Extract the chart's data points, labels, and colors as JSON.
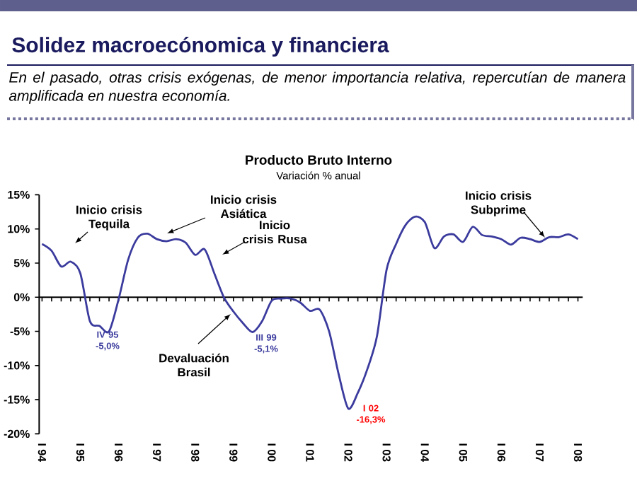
{
  "chart_data": {
    "type": "line",
    "title": "Producto Bruto Interno",
    "subtitle": "Variación % anual",
    "categories": [
      "I 94",
      null,
      null,
      null,
      "I 95",
      null,
      null,
      null,
      "I 96",
      null,
      null,
      null,
      "I 97",
      null,
      null,
      null,
      "I 98",
      null,
      null,
      null,
      "I 99",
      null,
      null,
      null,
      "I 00",
      null,
      null,
      null,
      "I 01",
      null,
      null,
      null,
      "I 02",
      null,
      null,
      null,
      "I 03",
      null,
      null,
      null,
      "I 04",
      null,
      null,
      null,
      "I 05",
      null,
      null,
      null,
      "I 06",
      null,
      null,
      null,
      "I 07",
      null,
      null,
      null,
      "I 08"
    ],
    "series": [
      {
        "color": "#3b3b9e",
        "values": [
          7.8,
          6.8,
          4.5,
          5.2,
          3.5,
          -3.5,
          -4.2,
          -5.0,
          -0.3,
          5.5,
          8.7,
          9.3,
          8.5,
          8.2,
          8.5,
          8.0,
          6.2,
          7.0,
          3.5,
          0.0,
          -2.1,
          -3.8,
          -5.1,
          -3.5,
          -0.5,
          -0.2,
          -0.2,
          -0.8,
          -2.0,
          -1.8,
          -5.0,
          -11.3,
          -16.3,
          -14.0,
          -10.5,
          -5.7,
          4.0,
          7.8,
          10.6,
          11.8,
          11.0,
          7.2,
          8.9,
          9.2,
          8.1,
          10.3,
          9.1,
          8.9,
          8.5,
          7.7,
          8.7,
          8.5,
          8.1,
          8.8,
          8.8,
          9.2,
          8.5
        ]
      }
    ],
    "ylim": [
      -20,
      15
    ],
    "yticks": [
      {
        "value": -20,
        "label": "-20%"
      },
      {
        "value": -15,
        "label": "-15%"
      },
      {
        "value": -10,
        "label": "-10%"
      },
      {
        "value": -5,
        "label": "-5%"
      },
      {
        "value": 0,
        "label": "0%"
      },
      {
        "value": 5,
        "label": "5%"
      },
      {
        "value": 10,
        "label": "10%"
      },
      {
        "value": 15,
        "label": "15%"
      }
    ],
    "annotations": [
      "Solidez macroecónomica y financiera",
      "En el pasado, otras crisis exógenas, de menor importancia relativa, repercutían de manera amplificada en nuestra economía.",
      "Inicio crisis Tequila",
      "Inicio crisis Asiática",
      "Inicio crisis Rusa",
      "Devaluación Brasil",
      "Inicio crisis Subprime",
      "IV 95 -5,0%",
      "III 99 -5,1%",
      "I 02 -16,3%"
    ]
  }
}
